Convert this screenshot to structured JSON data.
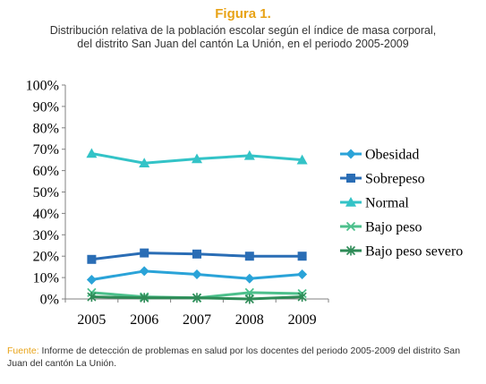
{
  "figure_label": "Figura 1.",
  "subtitle_line1": "Distribución relativa de la población escolar según el índice de masa corporal,",
  "subtitle_line2": "del distrito San Juan del cantón La Unión, en el periodo 2005-2009",
  "footer": {
    "source_label": "Fuente:",
    "source_text": " Informe de detección de problemas en salud por los docentes del periodo 2005-2009 del distrito San Juan del cantón La Unión."
  },
  "colors": {
    "figure_label": "#e8a317",
    "text": "#333333"
  },
  "chart_data": {
    "type": "line",
    "x": [
      "2005",
      "2006",
      "2007",
      "2008",
      "2009"
    ],
    "ylim": [
      0,
      100
    ],
    "yticks": [
      "0%",
      "10%",
      "20%",
      "30%",
      "40%",
      "50%",
      "60%",
      "70%",
      "80%",
      "90%",
      "100%"
    ],
    "grid": false,
    "legend_position": "right",
    "series": [
      {
        "name": "Obesidad",
        "values": [
          9,
          13,
          11.5,
          9.5,
          11.5
        ],
        "color": "#2aa3d8",
        "marker": "diamond"
      },
      {
        "name": "Sobrepeso",
        "values": [
          18.5,
          21.5,
          21,
          20,
          20
        ],
        "color": "#2a6db5",
        "marker": "square"
      },
      {
        "name": "Normal",
        "values": [
          68,
          63.5,
          65.5,
          67,
          65
        ],
        "color": "#33c3c7",
        "marker": "triangle"
      },
      {
        "name": "Bajo peso",
        "values": [
          3,
          1,
          0.5,
          3,
          2.5
        ],
        "color": "#4dc08c",
        "marker": "x"
      },
      {
        "name": "Bajo peso severo",
        "values": [
          1,
          0.5,
          0.5,
          0,
          1
        ],
        "color": "#2e8b57",
        "marker": "star"
      }
    ]
  }
}
